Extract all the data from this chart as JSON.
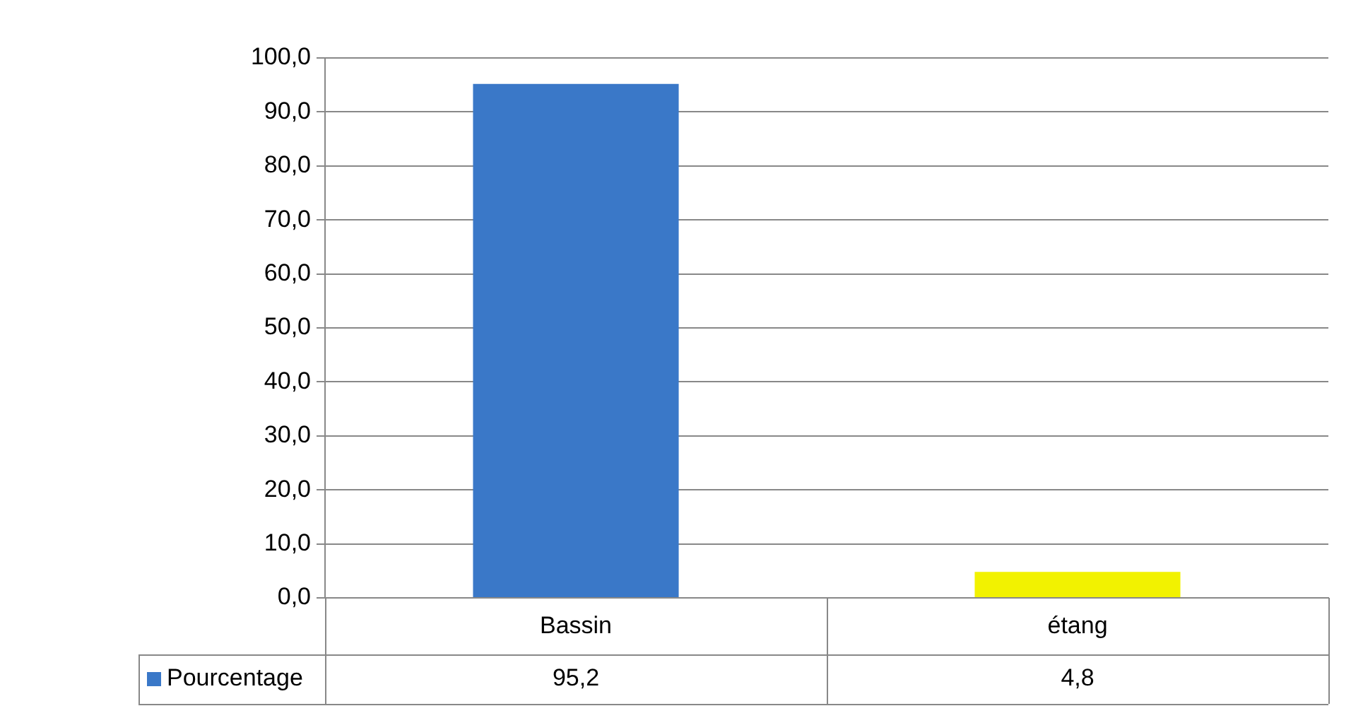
{
  "chart_data": {
    "type": "bar",
    "categories": [
      "Bassin",
      "étang"
    ],
    "series": [
      {
        "name": "Pourcentage",
        "colors": [
          "#3a78c8",
          "#f2f200"
        ],
        "color": "#3a78c8",
        "values": [
          95.2,
          4.8
        ],
        "value_labels": [
          "95,2",
          "4,8"
        ]
      }
    ],
    "ylim": [
      0,
      100
    ],
    "yticks": [
      {
        "value": 0,
        "label": "0,0"
      },
      {
        "value": 10,
        "label": "10,0"
      },
      {
        "value": 20,
        "label": "20,0"
      },
      {
        "value": 30,
        "label": "30,0"
      },
      {
        "value": 40,
        "label": "40,0"
      },
      {
        "value": 50,
        "label": "50,0"
      },
      {
        "value": 60,
        "label": "60,0"
      },
      {
        "value": 70,
        "label": "70,0"
      },
      {
        "value": 80,
        "label": "80,0"
      },
      {
        "value": 90,
        "label": "90,0"
      },
      {
        "value": 100,
        "label": "100,0"
      }
    ],
    "grid": "y",
    "legend": "bottom left"
  }
}
